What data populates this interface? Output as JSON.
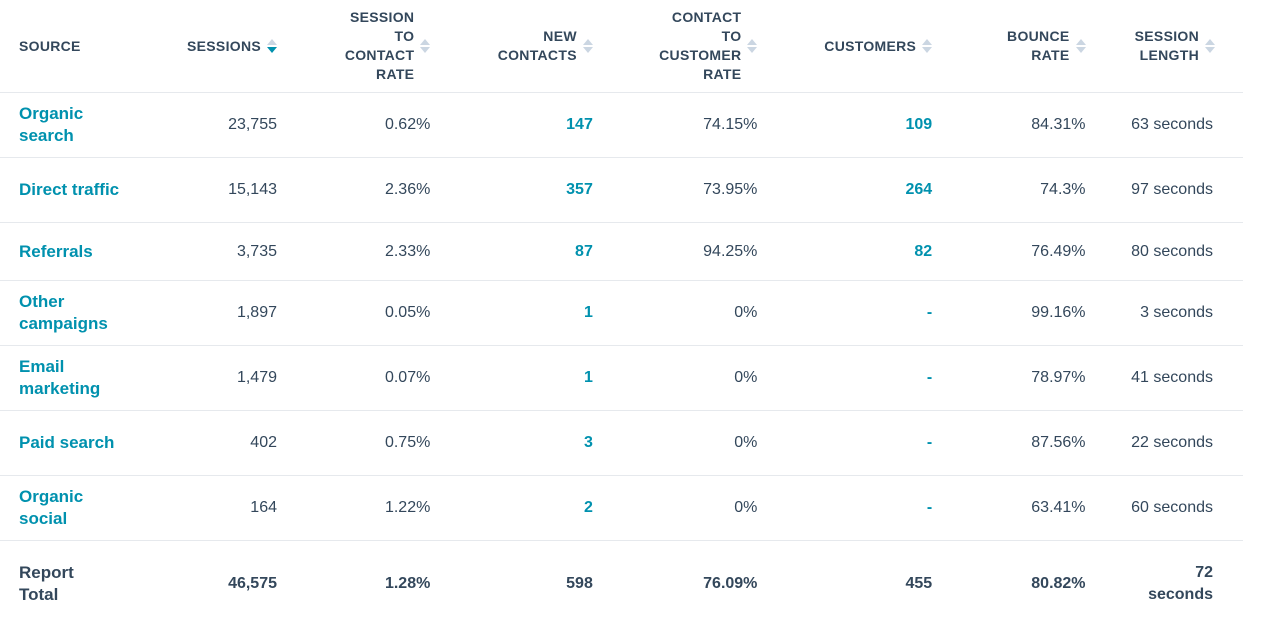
{
  "headers": [
    {
      "line1": "SOURCE"
    },
    {
      "line1": "SESSIONS"
    },
    {
      "line1": "SESSION",
      "line2": "TO",
      "line3": "CONTACT",
      "line4": "RATE"
    },
    {
      "line1": "NEW",
      "line2": "CONTACTS"
    },
    {
      "line1": "CONTACT",
      "line2": "TO",
      "line3": "CUSTOMER",
      "line4": "RATE"
    },
    {
      "line1": "CUSTOMERS"
    },
    {
      "line1": "BOUNCE",
      "line2": "RATE"
    },
    {
      "line1": "SESSION",
      "line2": "LENGTH"
    }
  ],
  "sort_column": "SESSIONS",
  "sort_direction": "descending",
  "rows": [
    {
      "source": "Organic search",
      "sessions": "23,755",
      "session_to_contact_rate": "0.62%",
      "new_contacts": "147",
      "contact_to_customer_rate": "74.15%",
      "customers": "109",
      "bounce_rate": "84.31%",
      "session_length": "63 seconds"
    },
    {
      "source": "Direct traffic",
      "sessions": "15,143",
      "session_to_contact_rate": "2.36%",
      "new_contacts": "357",
      "contact_to_customer_rate": "73.95%",
      "customers": "264",
      "bounce_rate": "74.3%",
      "session_length": "97 seconds"
    },
    {
      "source": "Referrals",
      "sessions": "3,735",
      "session_to_contact_rate": "2.33%",
      "new_contacts": "87",
      "contact_to_customer_rate": "94.25%",
      "customers": "82",
      "bounce_rate": "76.49%",
      "session_length": "80 seconds"
    },
    {
      "source": "Other campaigns",
      "sessions": "1,897",
      "session_to_contact_rate": "0.05%",
      "new_contacts": "1",
      "contact_to_customer_rate": "0%",
      "customers": "-",
      "bounce_rate": "99.16%",
      "session_length": "3 seconds"
    },
    {
      "source": "Email marketing",
      "sessions": "1,479",
      "session_to_contact_rate": "0.07%",
      "new_contacts": "1",
      "contact_to_customer_rate": "0%",
      "customers": "-",
      "bounce_rate": "78.97%",
      "session_length": "41 seconds"
    },
    {
      "source": "Paid search",
      "sessions": "402",
      "session_to_contact_rate": "0.75%",
      "new_contacts": "3",
      "contact_to_customer_rate": "0%",
      "customers": "-",
      "bounce_rate": "87.56%",
      "session_length": "22 seconds"
    },
    {
      "source": "Organic social",
      "sessions": "164",
      "session_to_contact_rate": "1.22%",
      "new_contacts": "2",
      "contact_to_customer_rate": "0%",
      "customers": "-",
      "bounce_rate": "63.41%",
      "session_length": "60 seconds"
    }
  ],
  "total": {
    "source": "Report Total",
    "sessions": "46,575",
    "session_to_contact_rate": "1.28%",
    "new_contacts": "598",
    "contact_to_customer_rate": "76.09%",
    "customers": "455",
    "bounce_rate": "80.82%",
    "session_length": "72 seconds"
  },
  "colors": {
    "link": "#0091ae",
    "text": "#33475b",
    "divider": "#e6e9ed",
    "sort_inactive": "#cbd6e2"
  }
}
